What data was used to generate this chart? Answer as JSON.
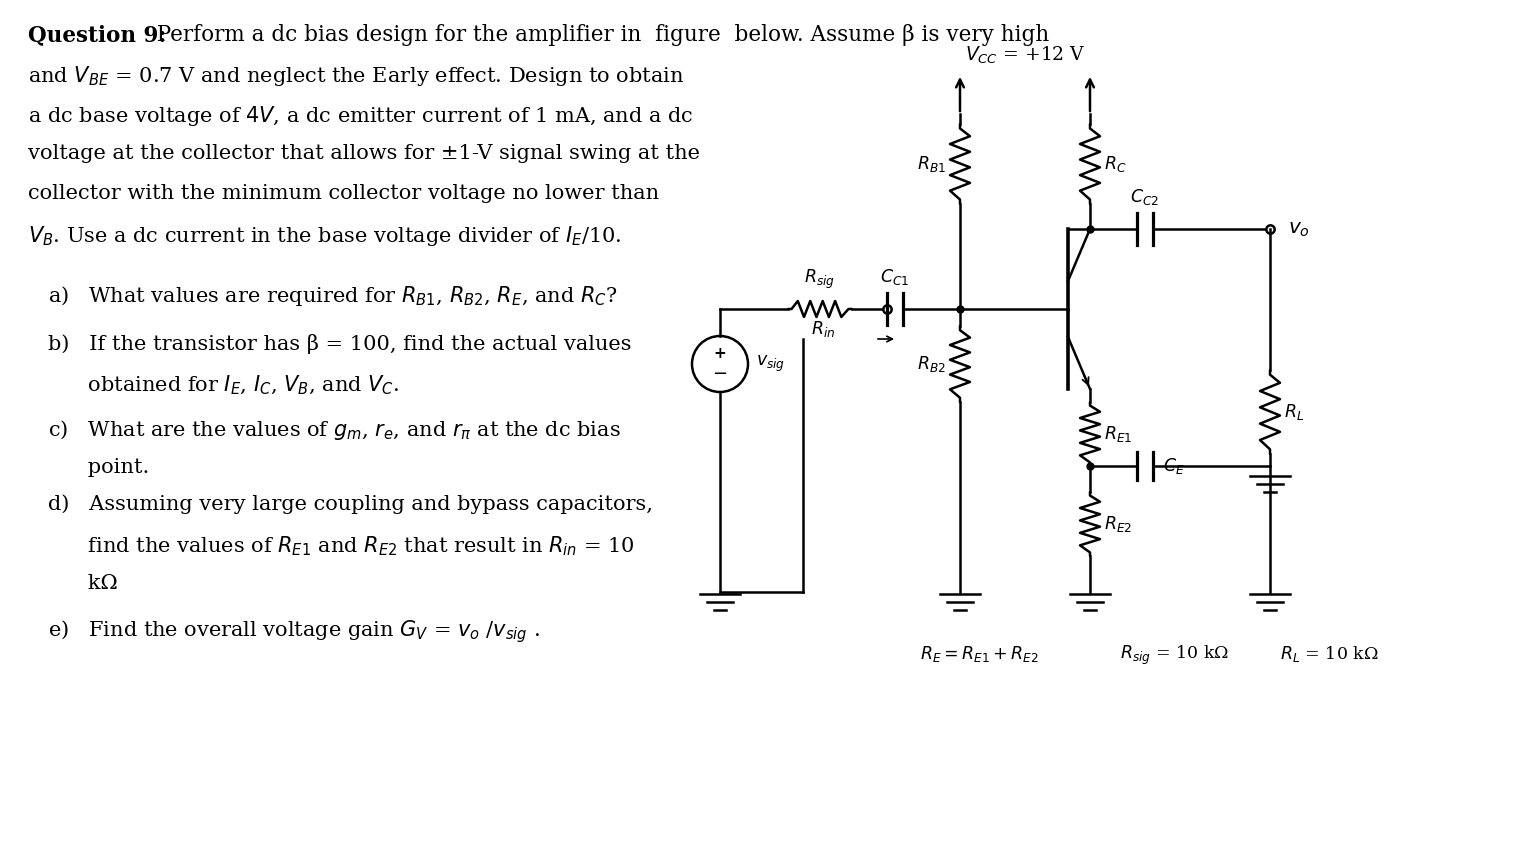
{
  "bg_color": "#ffffff",
  "title_bold": "Question 9:",
  "title_normal": "  Perform a dc bias design for the amplifier in  figure  below. Assume β is very high",
  "line2": "and $\\mathit{V}_{BE}$ = 0.7 V and neglect the Early effect. Design to obtain",
  "line3": "a dc base voltage of $\\mathit{4V}$, a dc emitter current of 1 mA, and a dc",
  "line4": "voltage at the collector that allows for ±1-V signal swing at the",
  "line5": "collector with the minimum collector voltage no lower than",
  "line6": "$\\mathit{V_B}$. Use a dc current in the base voltage divider of $\\mathit{I_E}$/10.",
  "item_a": "a)   What values are required for $R_{B1}$, $R_{B2}$, $R_E$, and $R_C$?",
  "item_b1": "b)   If the transistor has β = 100, find the actual values",
  "item_b2": "      obtained for $\\mathit{I_E}$, $\\mathit{I_C}$, $\\mathit{V_B}$, and $\\mathit{V_C}$.",
  "item_c1": "c)   What are the values of $g_m$, $r_e$, and $r_\\pi$ at the dc bias",
  "item_c2": "      point.",
  "item_d1": "d)   Assuming very large coupling and bypass capacitors,",
  "item_d2": "      find the values of $R_{E1}$ and $R_{E2}$ that result in $R_{in}$ = 10",
  "item_d3": "      kΩ",
  "item_e": "e)   Find the overall voltage gain $G_V$ = $v_o$ /$v_{sig}$ .",
  "vcc_label": "$V_{CC}$ = +12 V",
  "rb1_label": "$R_{B1}$",
  "rc_label": "$R_C$",
  "cc2_label": "$C_{C2}$",
  "vo_label": "$v_o$",
  "rl_label": "$R_L$",
  "rsig_label": "$R_{sig}$",
  "cc1_label": "$C_{C1}$",
  "rb2_label": "$R_{B2}$",
  "re1_label": "$R_{E1}$",
  "re2_label": "$R_{E2}$",
  "ce_label": "$C_E$",
  "vsig_label": "$v_{sig}$",
  "rin_label": "$R_{in}$",
  "re_label": "$R_E = R_{E1} + R_{E2}$",
  "rsig_val": "$R_{sig}$ = 10 kΩ",
  "rl_val": "$R_L$ = 10 kΩ"
}
